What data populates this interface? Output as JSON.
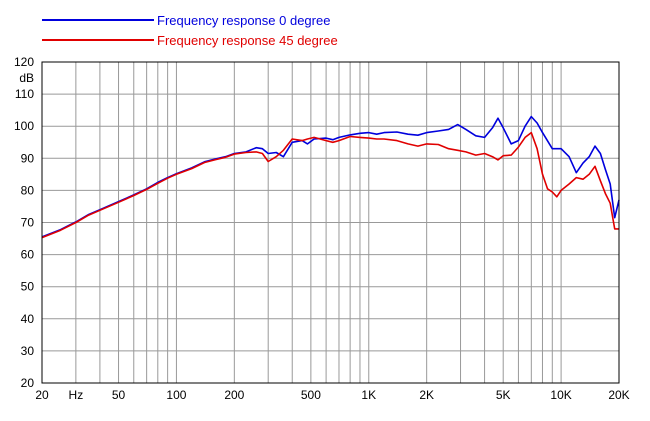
{
  "chart_data": {
    "type": "line",
    "title": "",
    "xlabel": "",
    "ylabel": "",
    "x_scale": "log",
    "xlim": [
      20,
      20000
    ],
    "ylim": [
      20,
      120
    ],
    "grid": true,
    "legend_placement": "top-left",
    "y_unit_label": "dB",
    "x_unit_label": "Hz",
    "y_ticks": [
      "120",
      "110",
      "100",
      "90",
      "80",
      "70",
      "60",
      "50",
      "40",
      "30",
      "20"
    ],
    "x_ticks": [
      {
        "value": 20,
        "label": "20"
      },
      {
        "value": 50,
        "label": "50"
      },
      {
        "value": 100,
        "label": "100"
      },
      {
        "value": 200,
        "label": "200"
      },
      {
        "value": 500,
        "label": "500"
      },
      {
        "value": 1000,
        "label": "1K"
      },
      {
        "value": 2000,
        "label": "2K"
      },
      {
        "value": 5000,
        "label": "5K"
      },
      {
        "value": 10000,
        "label": "10K"
      },
      {
        "value": 20000,
        "label": "20K"
      }
    ],
    "series": [
      {
        "name": "Frequency response 0 degree",
        "color": "#0000dd",
        "points": [
          [
            20,
            65.5
          ],
          [
            25,
            67.8
          ],
          [
            30,
            70.2
          ],
          [
            35,
            72.5
          ],
          [
            40,
            74.0
          ],
          [
            50,
            76.5
          ],
          [
            60,
            78.6
          ],
          [
            70,
            80.5
          ],
          [
            80,
            82.5
          ],
          [
            90,
            84.0
          ],
          [
            100,
            85.2
          ],
          [
            120,
            87.0
          ],
          [
            140,
            88.9
          ],
          [
            160,
            89.8
          ],
          [
            180,
            90.5
          ],
          [
            200,
            91.5
          ],
          [
            230,
            92.0
          ],
          [
            260,
            93.3
          ],
          [
            280,
            93.0
          ],
          [
            300,
            91.5
          ],
          [
            330,
            91.8
          ],
          [
            360,
            90.5
          ],
          [
            400,
            95.0
          ],
          [
            450,
            95.5
          ],
          [
            480,
            94.5
          ],
          [
            520,
            96.0
          ],
          [
            600,
            96.3
          ],
          [
            650,
            95.8
          ],
          [
            700,
            96.5
          ],
          [
            800,
            97.3
          ],
          [
            900,
            97.8
          ],
          [
            1000,
            98.0
          ],
          [
            1100,
            97.5
          ],
          [
            1200,
            98.0
          ],
          [
            1400,
            98.2
          ],
          [
            1600,
            97.5
          ],
          [
            1800,
            97.2
          ],
          [
            2000,
            98.0
          ],
          [
            2300,
            98.5
          ],
          [
            2600,
            99.0
          ],
          [
            2900,
            100.5
          ],
          [
            3200,
            99.0
          ],
          [
            3600,
            97.0
          ],
          [
            4000,
            96.5
          ],
          [
            4400,
            99.5
          ],
          [
            4700,
            102.5
          ],
          [
            5000,
            99.5
          ],
          [
            5500,
            94.5
          ],
          [
            6000,
            95.5
          ],
          [
            6500,
            100.0
          ],
          [
            7000,
            103.0
          ],
          [
            7500,
            101.0
          ],
          [
            8000,
            98.0
          ],
          [
            9000,
            93.0
          ],
          [
            10000,
            93.0
          ],
          [
            11000,
            90.5
          ],
          [
            12000,
            85.5
          ],
          [
            13000,
            88.5
          ],
          [
            14000,
            90.5
          ],
          [
            15000,
            93.8
          ],
          [
            16000,
            91.5
          ],
          [
            17000,
            86.5
          ],
          [
            18000,
            82.0
          ],
          [
            19000,
            71.5
          ],
          [
            20000,
            77.0
          ]
        ]
      },
      {
        "name": "Frequency response 45 degree",
        "color": "#e00000",
        "points": [
          [
            20,
            65.3
          ],
          [
            25,
            67.6
          ],
          [
            30,
            70.0
          ],
          [
            35,
            72.3
          ],
          [
            40,
            73.8
          ],
          [
            50,
            76.3
          ],
          [
            60,
            78.4
          ],
          [
            70,
            80.3
          ],
          [
            80,
            82.2
          ],
          [
            90,
            83.8
          ],
          [
            100,
            85.0
          ],
          [
            120,
            86.8
          ],
          [
            140,
            88.7
          ],
          [
            160,
            89.6
          ],
          [
            180,
            90.3
          ],
          [
            200,
            91.3
          ],
          [
            230,
            91.8
          ],
          [
            260,
            92.0
          ],
          [
            280,
            91.5
          ],
          [
            300,
            89.0
          ],
          [
            330,
            90.5
          ],
          [
            360,
            92.5
          ],
          [
            400,
            96.0
          ],
          [
            450,
            95.5
          ],
          [
            480,
            96.0
          ],
          [
            520,
            96.5
          ],
          [
            600,
            95.5
          ],
          [
            650,
            95.0
          ],
          [
            700,
            95.5
          ],
          [
            800,
            96.8
          ],
          [
            900,
            96.5
          ],
          [
            1000,
            96.3
          ],
          [
            1100,
            96.0
          ],
          [
            1200,
            96.0
          ],
          [
            1400,
            95.5
          ],
          [
            1600,
            94.5
          ],
          [
            1800,
            93.8
          ],
          [
            2000,
            94.5
          ],
          [
            2300,
            94.3
          ],
          [
            2600,
            93.0
          ],
          [
            2900,
            92.5
          ],
          [
            3200,
            92.0
          ],
          [
            3600,
            91.0
          ],
          [
            4000,
            91.5
          ],
          [
            4400,
            90.5
          ],
          [
            4700,
            89.5
          ],
          [
            5000,
            90.8
          ],
          [
            5500,
            91.0
          ],
          [
            6000,
            93.5
          ],
          [
            6500,
            96.5
          ],
          [
            7000,
            98.0
          ],
          [
            7500,
            93.0
          ],
          [
            8000,
            85.0
          ],
          [
            8500,
            80.5
          ],
          [
            9000,
            79.5
          ],
          [
            9500,
            78.0
          ],
          [
            10000,
            80.0
          ],
          [
            11000,
            82.0
          ],
          [
            12000,
            84.0
          ],
          [
            13000,
            83.5
          ],
          [
            14000,
            85.0
          ],
          [
            15000,
            87.5
          ],
          [
            16000,
            83.0
          ],
          [
            17000,
            79.0
          ],
          [
            18000,
            76.0
          ],
          [
            19000,
            68.0
          ],
          [
            20000,
            68.0
          ]
        ]
      }
    ]
  }
}
